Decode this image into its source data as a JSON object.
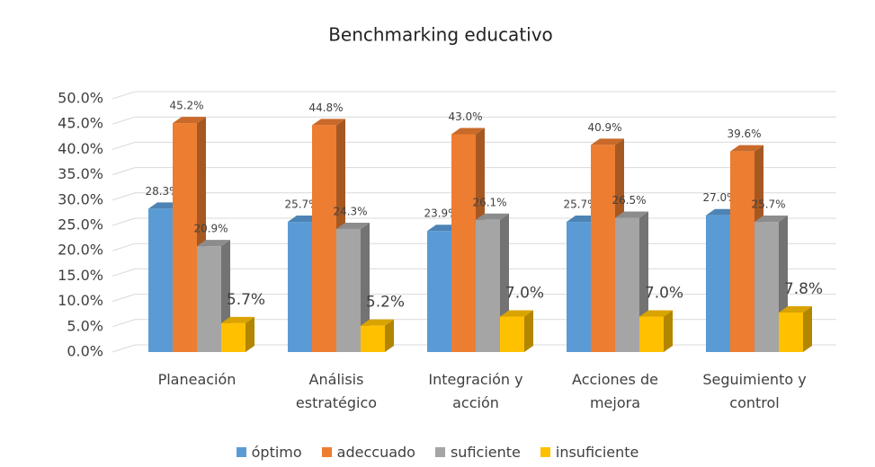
{
  "chart_data": {
    "type": "bar3d",
    "title": "Benchmarking educativo",
    "categories": [
      "Planeación",
      "Análisis estratégico",
      "Integración y acción",
      "Acciones de mejora",
      "Seguimiento y control"
    ],
    "series": [
      {
        "name": "óptimo",
        "color": "#5b9bd5",
        "values": [
          28.3,
          25.7,
          23.9,
          25.7,
          27.0
        ],
        "value_labels": [
          "28.3%",
          "25.7%",
          "23.9%",
          "25.7%",
          "27.0%"
        ]
      },
      {
        "name": "adeccuado",
        "color": "#ed7d31",
        "values": [
          45.2,
          44.8,
          43.0,
          40.9,
          39.6
        ],
        "value_labels": [
          "45.2%",
          "44.8%",
          "43.0%",
          "40.9%",
          "39.6%"
        ]
      },
      {
        "name": "suficiente",
        "color": "#a5a5a5",
        "values": [
          20.9,
          24.3,
          26.1,
          26.5,
          25.7
        ],
        "value_labels": [
          "20.9%",
          "24.3%",
          "26.1%",
          "26.5%",
          "25.7%"
        ]
      },
      {
        "name": "insuficiente",
        "color": "#ffc000",
        "values": [
          5.7,
          5.2,
          7.0,
          7.0,
          7.8
        ],
        "value_labels": [
          "5.7%",
          "5.2%",
          "7.0%",
          "7.0%",
          "7.8%"
        ]
      }
    ],
    "ylim": [
      0,
      50
    ],
    "yticks": [
      {
        "value": 0,
        "label": "0.0%"
      },
      {
        "value": 5,
        "label": "5.0%"
      },
      {
        "value": 10,
        "label": "10.0%"
      },
      {
        "value": 15,
        "label": "15.0%"
      },
      {
        "value": 20,
        "label": "20.0%"
      },
      {
        "value": 25,
        "label": "25.0%"
      },
      {
        "value": 30,
        "label": "30.0%"
      },
      {
        "value": 35,
        "label": "35.0%"
      },
      {
        "value": 40,
        "label": "40.0%"
      },
      {
        "value": 45,
        "label": "45.0%"
      },
      {
        "value": 50,
        "label": "50.0%"
      }
    ],
    "grid": true,
    "legend": "bottom"
  }
}
